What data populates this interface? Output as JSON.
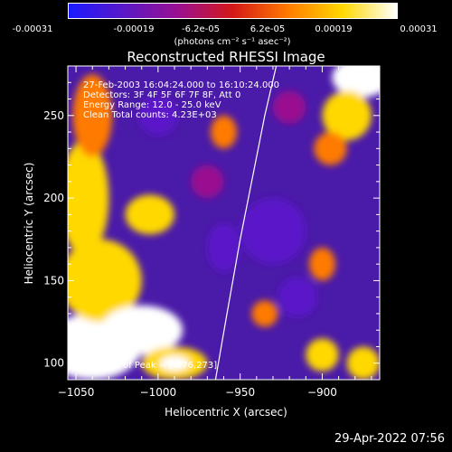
{
  "colorbar": {
    "ticks": [
      "-0.00031",
      "-0.00019",
      "-6.2e-05",
      "6.2e-05",
      "0.00019",
      "0.00031"
    ],
    "unit": "(photons cm⁻² s⁻¹ asec⁻²)",
    "colors": [
      "#1a1aff",
      "#5a18c8",
      "#9a1090",
      "#d41818",
      "#ff7a00",
      "#ffd800",
      "#ffffff"
    ]
  },
  "chart_data": {
    "type": "heatmap",
    "title": "Reconstructed RHESSI Image",
    "xlabel": "Heliocentric X (arcsec)",
    "ylabel": "Heliocentric Y (arcsec)",
    "xlim": [
      -1055,
      -865
    ],
    "ylim": [
      90,
      280
    ],
    "xticks": [
      -1050,
      -1000,
      -950,
      -900
    ],
    "yticks": [
      100,
      150,
      200,
      250
    ],
    "value_range": [
      -0.00031,
      0.00031
    ],
    "annotations": [
      "27-Feb-2003 16:04:24.000 to 16:10:24.000",
      "Detectors: 3F 4F 5F 6F 7F 8F, Att 0",
      "Energy Range: 12.0 - 25.0 keV",
      "Clean      Total counts: 4.23E+03"
    ],
    "peak_label": "Position of Peak = [-876,273]",
    "peak": [
      -876,
      273
    ],
    "limb_curve": [
      [
        -965,
        90
      ],
      [
        -958,
        130
      ],
      [
        -950,
        175
      ],
      [
        -942,
        215
      ],
      [
        -935,
        250
      ],
      [
        -928,
        280
      ]
    ],
    "sources": [
      {
        "x": -1040,
        "y": 110,
        "value": 0.00028,
        "rx": 30,
        "ry": 20
      },
      {
        "x": -1035,
        "y": 150,
        "value": 0.00022,
        "rx": 25,
        "ry": 25
      },
      {
        "x": -1010,
        "y": 120,
        "value": 0.0003,
        "rx": 25,
        "ry": 15
      },
      {
        "x": -1045,
        "y": 200,
        "value": 0.00018,
        "rx": 15,
        "ry": 35
      },
      {
        "x": -1005,
        "y": 190,
        "value": 0.0002,
        "rx": 15,
        "ry": 12
      },
      {
        "x": -990,
        "y": 100,
        "value": 0.00025,
        "rx": 20,
        "ry": 10
      },
      {
        "x": -1040,
        "y": 250,
        "value": 0.00015,
        "rx": 12,
        "ry": 25
      },
      {
        "x": -876,
        "y": 273,
        "value": 0.00031,
        "rx": 18,
        "ry": 12
      },
      {
        "x": -885,
        "y": 250,
        "value": 0.00022,
        "rx": 15,
        "ry": 15
      },
      {
        "x": -895,
        "y": 230,
        "value": 0.00012,
        "rx": 10,
        "ry": 10
      },
      {
        "x": -935,
        "y": 130,
        "value": 0.00014,
        "rx": 8,
        "ry": 8
      },
      {
        "x": -900,
        "y": 160,
        "value": 0.00013,
        "rx": 8,
        "ry": 10
      },
      {
        "x": -900,
        "y": 105,
        "value": 0.00016,
        "rx": 10,
        "ry": 10
      },
      {
        "x": -875,
        "y": 100,
        "value": 0.00018,
        "rx": 10,
        "ry": 10
      },
      {
        "x": -960,
        "y": 240,
        "value": 0.0001,
        "rx": 8,
        "ry": 10
      },
      {
        "x": -930,
        "y": 180,
        "value": -0.0002,
        "rx": 20,
        "ry": 20
      },
      {
        "x": -1000,
        "y": 250,
        "value": -0.00018,
        "rx": 12,
        "ry": 12
      },
      {
        "x": -960,
        "y": 170,
        "value": -0.00016,
        "rx": 10,
        "ry": 15
      },
      {
        "x": -915,
        "y": 140,
        "value": -0.00016,
        "rx": 12,
        "ry": 12
      },
      {
        "x": -920,
        "y": 255,
        "value": -0.00012,
        "rx": 10,
        "ry": 10
      },
      {
        "x": -970,
        "y": 210,
        "value": -0.00012,
        "rx": 10,
        "ry": 10
      }
    ]
  },
  "timestamp": "29-Apr-2022 07:56"
}
